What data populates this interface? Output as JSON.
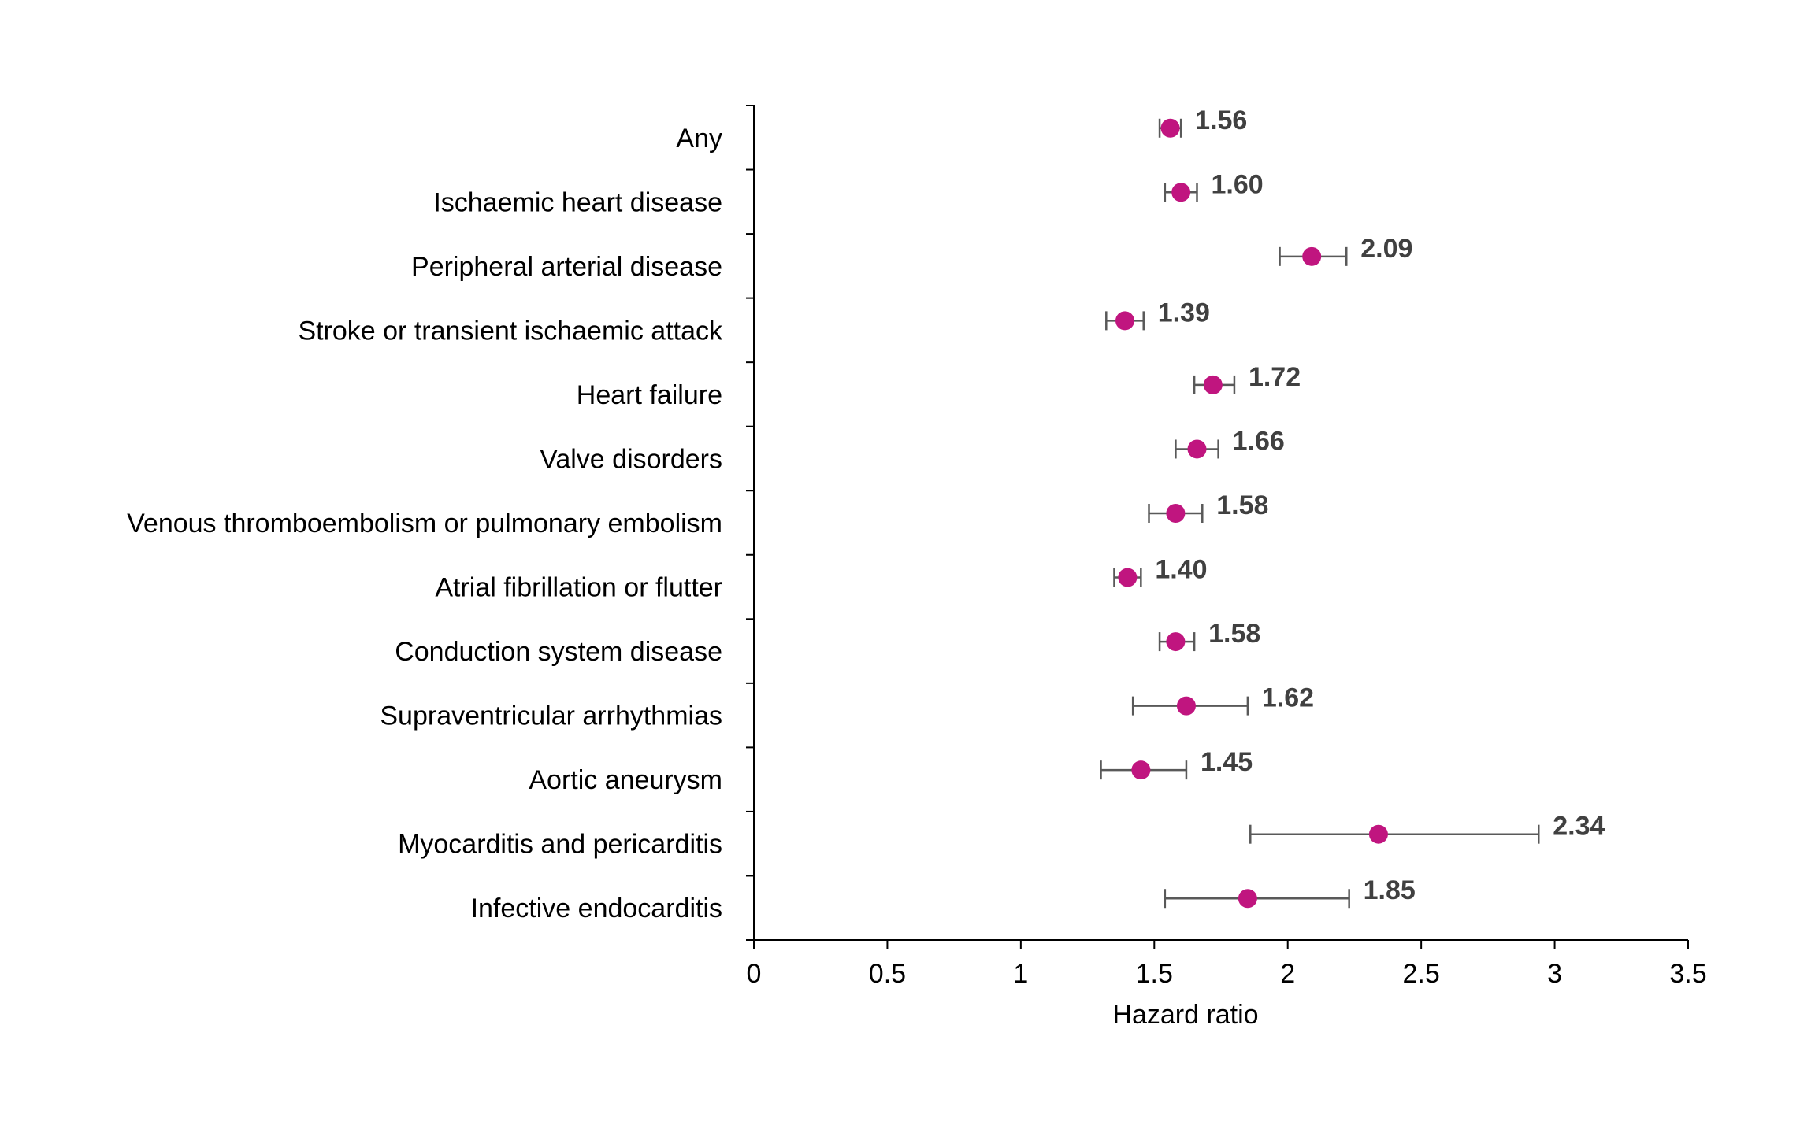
{
  "chart_data": {
    "type": "scatter",
    "orientation": "horizontal-forest-plot",
    "title": "",
    "xlabel": "Hazard ratio",
    "ylabel": "",
    "xlim": [
      0,
      3.5
    ],
    "xticks": [
      0,
      0.5,
      1,
      1.5,
      2,
      2.5,
      3,
      3.5
    ],
    "xtick_labels": [
      "0",
      "0.5",
      "1",
      "1.5",
      "2",
      "2.5",
      "3",
      "3.5"
    ],
    "grid": false,
    "legend": "none",
    "marker_color": "#C0157F",
    "error_bar_color": "#595959",
    "value_label_color": "#404040",
    "categories": [
      "Any",
      "Ischaemic heart disease",
      "Peripheral arterial disease",
      "Stroke or transient ischaemic attack",
      "Heart failure",
      "Valve disorders",
      "Venous thromboembolism or pulmonary embolism",
      "Atrial fibrillation or flutter",
      "Conduction system disease",
      "Supraventricular arrhythmias",
      "Aortic aneurysm",
      "Myocarditis and pericarditis",
      "Infective endocarditis"
    ],
    "values": [
      1.56,
      1.6,
      2.09,
      1.39,
      1.72,
      1.66,
      1.58,
      1.4,
      1.58,
      1.62,
      1.45,
      2.34,
      1.85
    ],
    "value_labels": [
      "1.56",
      "1.60",
      "2.09",
      "1.39",
      "1.72",
      "1.66",
      "1.58",
      "1.40",
      "1.58",
      "1.62",
      "1.45",
      "2.34",
      "1.85"
    ],
    "ci_lower": [
      1.52,
      1.54,
      1.97,
      1.32,
      1.65,
      1.58,
      1.48,
      1.35,
      1.52,
      1.42,
      1.3,
      1.86,
      1.54
    ],
    "ci_upper": [
      1.6,
      1.66,
      2.22,
      1.46,
      1.8,
      1.74,
      1.68,
      1.45,
      1.65,
      1.85,
      1.62,
      2.94,
      2.23
    ]
  }
}
